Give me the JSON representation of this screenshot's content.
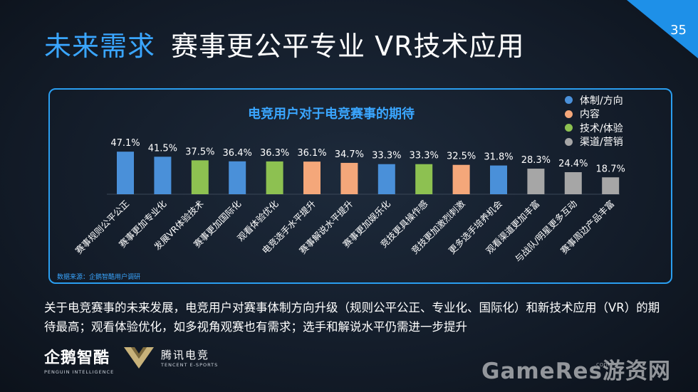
{
  "header": {
    "title_accent": "未来需求",
    "title_main": "赛事更公平专业 VR技术应用",
    "page_number": "35"
  },
  "legend": [
    {
      "label": "体制/方向",
      "color": "#4a90d9"
    },
    {
      "label": "内容",
      "color": "#f4a77a"
    },
    {
      "label": "技术/体验",
      "color": "#8dc151"
    },
    {
      "label": "渠道/营销",
      "color": "#a6a6a6"
    }
  ],
  "source_note": "数据来源：企鹅智酷用户调研",
  "chart_data": {
    "type": "bar",
    "title": "电竞用户对于电竞赛事的期待",
    "categories": [
      "赛事规则公平公正",
      "赛事更加专业化",
      "发展VR体验技术",
      "赛事更加国际化",
      "观看体验优化",
      "电竞选手水平提升",
      "赛事解说水平提升",
      "赛事更加娱乐化",
      "竞技更具操作感",
      "竞技更加激烈刺激",
      "更多选手培养机会",
      "观看渠道更加丰富",
      "与战队/明星更多互动",
      "赛事周边产品丰富"
    ],
    "values": [
      47.1,
      41.5,
      37.5,
      36.4,
      36.3,
      36.1,
      34.7,
      33.3,
      33.3,
      32.5,
      31.8,
      28.3,
      24.4,
      18.7
    ],
    "value_labels": [
      "47.1%",
      "41.5%",
      "37.5%",
      "36.4%",
      "36.3%",
      "36.1%",
      "34.7%",
      "33.3%",
      "33.3%",
      "32.5%",
      "31.8%",
      "28.3%",
      "24.4%",
      "18.7%"
    ],
    "groups": [
      "体制/方向",
      "体制/方向",
      "技术/体验",
      "体制/方向",
      "技术/体验",
      "内容",
      "内容",
      "体制/方向",
      "技术/体验",
      "内容",
      "体制/方向",
      "渠道/营销",
      "渠道/营销",
      "渠道/营销"
    ],
    "unit": "%",
    "legend_position": "top-right",
    "grid": false
  },
  "description": "关于电竞赛事的未来发展，电竞用户对赛事体制方向升级（规则公平公正、专业化、国际化）和新技术应用（VR）的期待最高；观看体验优化，如多视角观赛也有需求；选手和解说水平仍需进一步提升",
  "logos": {
    "penguin_main": "企鹅智酷",
    "penguin_sub": "PENGUIN INTELLIGENCE",
    "tencent_main": "腾讯电竞",
    "tencent_sub": "TENCENT E-SPORTS"
  },
  "watermark": {
    "text": "GameRes游资网",
    "dotcom": ".com"
  }
}
